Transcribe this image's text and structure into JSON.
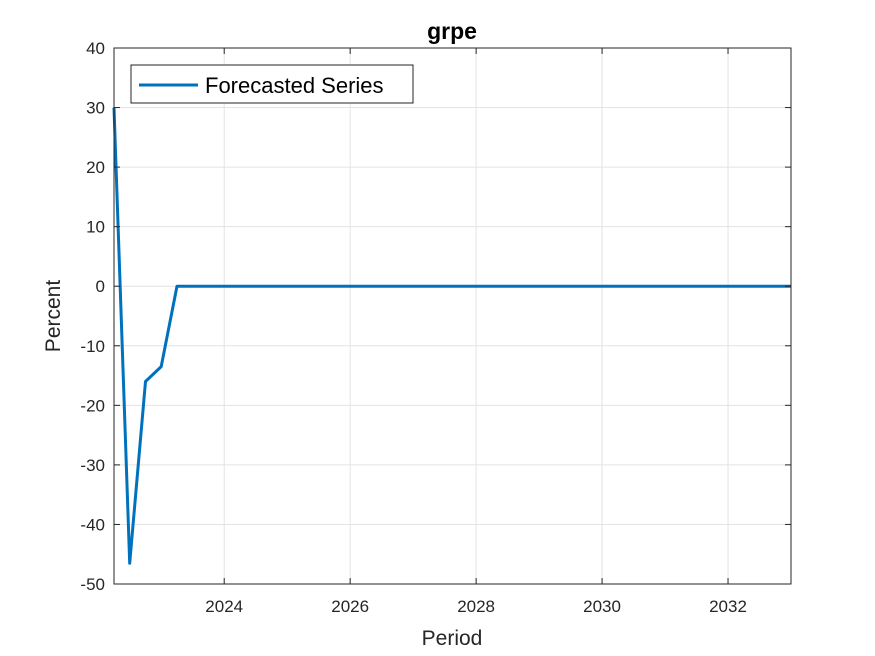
{
  "chart_data": {
    "type": "line",
    "title": "grpe",
    "xlabel": "Period",
    "ylabel": "Percent",
    "xlim": [
      2022.25,
      2033.0
    ],
    "ylim": [
      -50,
      40
    ],
    "xticks": [
      2024,
      2026,
      2028,
      2030,
      2032
    ],
    "yticks": [
      -50,
      -40,
      -30,
      -20,
      -10,
      0,
      10,
      20,
      30,
      40
    ],
    "grid": true,
    "legend_position": "top-left",
    "series": [
      {
        "name": "Forecasted Series",
        "color": "#0072BD",
        "x": [
          2022.25,
          2022.5,
          2022.75,
          2023.0,
          2023.25,
          2023.5,
          2024.0,
          2025.0,
          2026.0,
          2027.0,
          2028.0,
          2029.0,
          2030.0,
          2031.0,
          2032.0,
          2033.0
        ],
        "y": [
          30,
          -46.5,
          -16,
          -13.5,
          0,
          0,
          0,
          0,
          0,
          0,
          0,
          0,
          0,
          0,
          0,
          0
        ]
      }
    ]
  }
}
